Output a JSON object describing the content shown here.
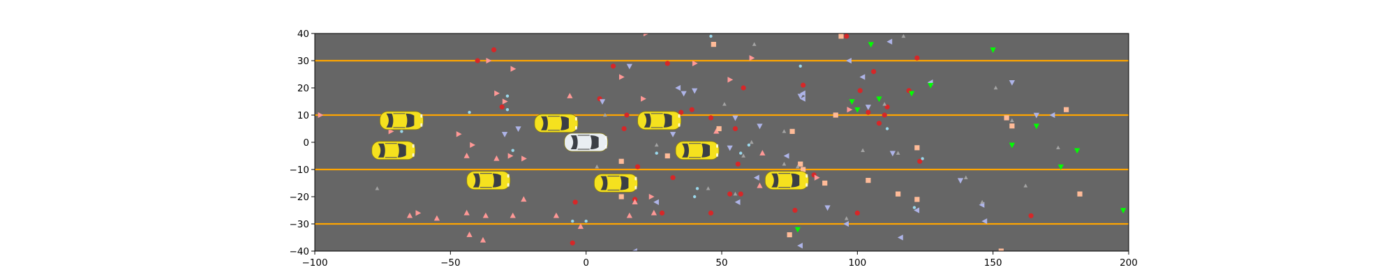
{
  "chart_data": {
    "type": "scatter",
    "title": "",
    "xlabel": "",
    "ylabel": "",
    "xlim": [
      -100,
      200
    ],
    "ylim": [
      -40,
      40
    ],
    "x_ticks": [
      -100,
      -50,
      0,
      50,
      100,
      150,
      200
    ],
    "y_ticks": [
      -40,
      -30,
      -20,
      -10,
      0,
      10,
      20,
      30,
      40
    ],
    "x_tick_labels": [
      "−100",
      "−50",
      "0",
      "50",
      "100",
      "150",
      "200"
    ],
    "y_tick_labels": [
      "−40",
      "−30",
      "−20",
      "−10",
      "0",
      "10",
      "20",
      "30",
      "40"
    ],
    "grid": false,
    "background_color": "#666666",
    "lane_lines": {
      "color": "#ffa500",
      "y": [
        30,
        10,
        -10,
        -30
      ]
    },
    "vehicles": [
      {
        "x": -68,
        "y": 8,
        "color": "#f5e11e"
      },
      {
        "x": -71,
        "y": -3,
        "color": "#f5e11e"
      },
      {
        "x": -36,
        "y": -14,
        "color": "#f5e11e"
      },
      {
        "x": -11,
        "y": 7,
        "color": "#f5e11e"
      },
      {
        "x": 0,
        "y": 0,
        "color": "#e9eef2",
        "ego": true
      },
      {
        "x": 11,
        "y": -15,
        "color": "#f5e11e"
      },
      {
        "x": 27,
        "y": 8,
        "color": "#f5e11e"
      },
      {
        "x": 41,
        "y": -3,
        "color": "#f5e11e"
      },
      {
        "x": 74,
        "y": -14,
        "color": "#f5e11e"
      }
    ],
    "series": [
      {
        "marker": "circle",
        "color": "#d62728",
        "points": [
          [
            -40,
            30
          ],
          [
            -34,
            34
          ],
          [
            -31,
            13
          ],
          [
            -5,
            -37
          ],
          [
            -4,
            -22
          ],
          [
            5,
            16
          ],
          [
            10,
            28
          ],
          [
            14,
            5
          ],
          [
            15,
            10
          ],
          [
            18,
            -21
          ],
          [
            19,
            -9
          ],
          [
            28,
            -26
          ],
          [
            30,
            29
          ],
          [
            32,
            -13
          ],
          [
            35,
            11
          ],
          [
            39,
            12
          ],
          [
            46,
            -26
          ],
          [
            46,
            9
          ],
          [
            53,
            -19
          ],
          [
            55,
            5
          ],
          [
            56,
            -8
          ],
          [
            57,
            -19
          ],
          [
            58,
            20
          ],
          [
            77,
            -25
          ],
          [
            80,
            21
          ],
          [
            84,
            -12
          ],
          [
            96,
            39
          ],
          [
            100,
            -26
          ],
          [
            101,
            19
          ],
          [
            104,
            11
          ],
          [
            106,
            26
          ],
          [
            108,
            7
          ],
          [
            110,
            10
          ],
          [
            111,
            13
          ],
          [
            119,
            19
          ],
          [
            122,
            31
          ],
          [
            123,
            -7
          ],
          [
            164,
            -27
          ]
        ]
      },
      {
        "marker": "triangle-up",
        "color": "#ff9896",
        "points": [
          [
            -65,
            -27
          ],
          [
            -55,
            -28
          ],
          [
            -44,
            -26
          ],
          [
            -44,
            -5
          ],
          [
            -43,
            -34
          ],
          [
            -38,
            -36
          ],
          [
            -37,
            -27
          ],
          [
            -33,
            -6
          ],
          [
            -27,
            -27
          ],
          [
            -23,
            -21
          ],
          [
            -11,
            -27
          ],
          [
            -6,
            17
          ],
          [
            -2,
            -31
          ],
          [
            16,
            -27
          ],
          [
            18,
            -22
          ],
          [
            25,
            -26
          ],
          [
            48,
            4
          ],
          [
            64,
            -16
          ],
          [
            65,
            -4
          ]
        ]
      },
      {
        "marker": "triangle-right",
        "color": "#ff9896",
        "points": [
          [
            -98,
            10
          ],
          [
            -72,
            4
          ],
          [
            -62,
            -26
          ],
          [
            -47,
            3
          ],
          [
            -42,
            -1
          ],
          [
            -36,
            30
          ],
          [
            -33,
            18
          ],
          [
            -30,
            15
          ],
          [
            -28,
            -5
          ],
          [
            -27,
            27
          ],
          [
            -23,
            -6
          ],
          [
            13,
            24
          ],
          [
            21,
            16
          ],
          [
            22,
            40
          ],
          [
            24,
            -20
          ],
          [
            40,
            29
          ],
          [
            53,
            23
          ],
          [
            61,
            31
          ],
          [
            85,
            -13
          ],
          [
            97,
            12
          ]
        ]
      },
      {
        "marker": "square",
        "color": "#ffbb98",
        "points": [
          [
            13,
            -7
          ],
          [
            13,
            -20
          ],
          [
            30,
            -5
          ],
          [
            47,
            36
          ],
          [
            49,
            5
          ],
          [
            75,
            -34
          ],
          [
            76,
            4
          ],
          [
            79,
            -8
          ],
          [
            80,
            -10
          ],
          [
            88,
            -15
          ],
          [
            92,
            10
          ],
          [
            94,
            39
          ],
          [
            104,
            -14
          ],
          [
            115,
            -19
          ],
          [
            122,
            -2
          ],
          [
            122,
            -21
          ],
          [
            153,
            -40
          ],
          [
            155,
            9
          ],
          [
            157,
            6
          ],
          [
            177,
            12
          ],
          [
            182,
            -19
          ]
        ]
      },
      {
        "marker": "triangle-left",
        "color": "#aeb4e8",
        "points": [
          [
            18,
            -40
          ],
          [
            26,
            -22
          ],
          [
            34,
            20
          ],
          [
            56,
            -22
          ],
          [
            63,
            -13
          ],
          [
            74,
            -5
          ],
          [
            79,
            -38
          ],
          [
            80,
            16
          ],
          [
            80,
            18
          ],
          [
            96,
            -30
          ],
          [
            97,
            30
          ],
          [
            102,
            24
          ],
          [
            112,
            37
          ],
          [
            116,
            -35
          ],
          [
            122,
            -25
          ],
          [
            127,
            22
          ],
          [
            146,
            -23
          ],
          [
            147,
            -29
          ],
          [
            172,
            10
          ]
        ]
      },
      {
        "marker": "triangle-down",
        "color": "#aeb4e8",
        "points": [
          [
            -30,
            3
          ],
          [
            -25,
            5
          ],
          [
            6,
            15
          ],
          [
            16,
            28
          ],
          [
            32,
            3
          ],
          [
            36,
            18
          ],
          [
            40,
            19
          ],
          [
            53,
            -2
          ],
          [
            55,
            9
          ],
          [
            64,
            6
          ],
          [
            79,
            17
          ],
          [
            89,
            -24
          ],
          [
            104,
            13
          ],
          [
            113,
            -4
          ],
          [
            138,
            -14
          ],
          [
            157,
            22
          ],
          [
            166,
            10
          ]
        ]
      },
      {
        "marker": "triangle-up",
        "color": "#a3a3a3",
        "points": [
          [
            -77,
            -17
          ],
          [
            4,
            -9
          ],
          [
            7,
            10
          ],
          [
            26,
            -1
          ],
          [
            37,
            -2
          ],
          [
            45,
            -17
          ],
          [
            51,
            14
          ],
          [
            55,
            -19
          ],
          [
            58,
            -5
          ],
          [
            61,
            0
          ],
          [
            62,
            36
          ],
          [
            73,
            4
          ],
          [
            73,
            -8
          ],
          [
            78,
            -9
          ],
          [
            96,
            -28
          ],
          [
            102,
            -3
          ],
          [
            110,
            14
          ],
          [
            115,
            -4
          ],
          [
            117,
            39
          ],
          [
            140,
            -13
          ],
          [
            146,
            -22
          ],
          [
            151,
            20
          ],
          [
            157,
            8
          ],
          [
            162,
            -16
          ],
          [
            174,
            -2
          ]
        ]
      },
      {
        "marker": "circle-small",
        "color": "#9ad8ec",
        "points": [
          [
            -68,
            4
          ],
          [
            -43,
            11
          ],
          [
            -29,
            17
          ],
          [
            -29,
            12
          ],
          [
            -27,
            -3
          ],
          [
            -5,
            -29
          ],
          [
            0,
            -29
          ],
          [
            26,
            -4
          ],
          [
            40,
            -20
          ],
          [
            41,
            -17
          ],
          [
            46,
            39
          ],
          [
            57,
            -4
          ],
          [
            60,
            -1
          ],
          [
            79,
            28
          ],
          [
            111,
            5
          ],
          [
            121,
            -24
          ],
          [
            124,
            -6
          ]
        ]
      },
      {
        "marker": "triangle-down",
        "color": "#00ff00",
        "points": [
          [
            78,
            -32
          ],
          [
            98,
            15
          ],
          [
            100,
            12
          ],
          [
            105,
            36
          ],
          [
            108,
            16
          ],
          [
            120,
            18
          ],
          [
            127,
            21
          ],
          [
            150,
            34
          ],
          [
            157,
            -1
          ],
          [
            166,
            6
          ],
          [
            175,
            -9
          ],
          [
            181,
            -3
          ],
          [
            198,
            -25
          ]
        ]
      }
    ]
  }
}
